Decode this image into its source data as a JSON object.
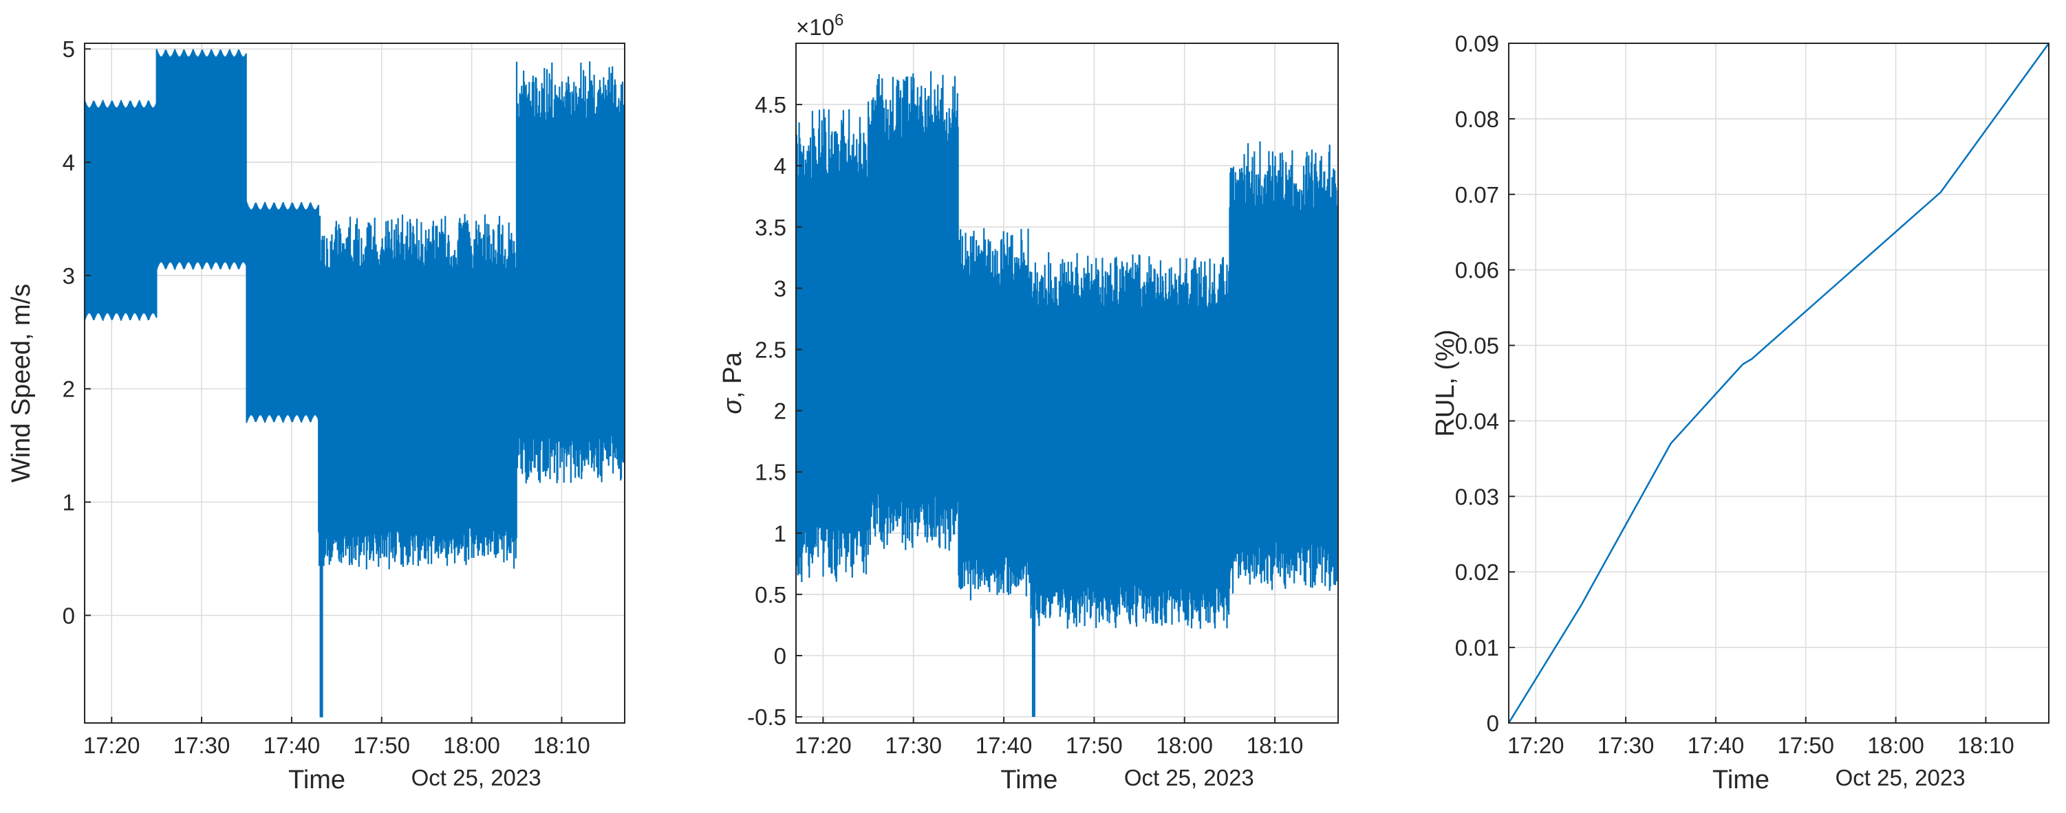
{
  "figure_colors": {
    "series": "#0072BD",
    "axes": "#262626",
    "grid": "#dcdcdc"
  },
  "chart_data": [
    {
      "type": "line",
      "id": "wind",
      "xlabel": "Time",
      "date_label": "Oct 25, 2023",
      "ylabel": "Wind Speed, m/s",
      "xlim": [
        "17:17",
        "18:17"
      ],
      "ylim": [
        -0.95,
        5.05
      ],
      "x_ticks": [
        "17:20",
        "17:30",
        "17:40",
        "17:50",
        "18:00",
        "18:10"
      ],
      "y_ticks": [
        "0",
        "1",
        "2",
        "3",
        "4",
        "5"
      ],
      "segments": [
        {
          "start": "17:17",
          "end": "17:25",
          "min": 2.6,
          "max": 4.55,
          "style": "periodic"
        },
        {
          "start": "17:25",
          "end": "17:35",
          "min": 3.05,
          "max": 5.0,
          "style": "periodic"
        },
        {
          "start": "17:35",
          "end": "17:43",
          "min": 1.7,
          "max": 3.65,
          "style": "periodic"
        },
        {
          "start": "17:43",
          "end": "18:05",
          "min": 0.4,
          "max": 3.55,
          "style": "noisy"
        },
        {
          "start": "18:05",
          "end": "18:17",
          "min": 1.15,
          "max": 4.9,
          "style": "noisy"
        }
      ],
      "spike": {
        "time": "17:43",
        "min": -0.9
      },
      "grid": true
    },
    {
      "type": "line",
      "id": "stress",
      "xlabel": "Time",
      "date_label": "Oct 25, 2023",
      "ylabel": "σ, Pa",
      "exponent_label": "×10",
      "exponent_value": "6",
      "xlim": [
        "17:17",
        "18:17"
      ],
      "ylim": [
        -0.55,
        5.0
      ],
      "x_ticks": [
        "17:20",
        "17:30",
        "17:40",
        "17:50",
        "18:00",
        "18:10"
      ],
      "y_ticks": [
        "-0.5",
        "0",
        "0.5",
        "1",
        "1.5",
        "2",
        "2.5",
        "3",
        "3.5",
        "4",
        "4.5"
      ],
      "segments": [
        {
          "start": "17:17",
          "end": "17:25",
          "min": 0.6,
          "max": 4.5,
          "style": "noisy"
        },
        {
          "start": "17:25",
          "end": "17:35",
          "min": 0.85,
          "max": 4.8,
          "style": "noisy"
        },
        {
          "start": "17:35",
          "end": "17:43",
          "min": 0.45,
          "max": 3.5,
          "style": "noisy"
        },
        {
          "start": "17:43",
          "end": "18:05",
          "min": 0.2,
          "max": 3.3,
          "style": "noisy"
        },
        {
          "start": "18:05",
          "end": "18:17",
          "min": 0.5,
          "max": 4.2,
          "style": "noisy"
        }
      ],
      "spike": {
        "time": "17:43",
        "min": -0.5
      },
      "grid": true
    },
    {
      "type": "line",
      "id": "rul",
      "xlabel": "Time",
      "date_label": "Oct 25, 2023",
      "ylabel": "RUL, (%)",
      "xlim": [
        "17:17",
        "18:17"
      ],
      "ylim": [
        0,
        0.09
      ],
      "x_ticks": [
        "17:20",
        "17:30",
        "17:40",
        "17:50",
        "18:00",
        "18:10"
      ],
      "y_ticks": [
        "0",
        "0.01",
        "0.02",
        "0.03",
        "0.04",
        "0.05",
        "0.06",
        "0.07",
        "0.08",
        "0.09"
      ],
      "points": [
        {
          "x": "17:17",
          "y": 0.0
        },
        {
          "x": "17:25",
          "y": 0.0155
        },
        {
          "x": "17:35",
          "y": 0.037
        },
        {
          "x": "17:43",
          "y": 0.0475
        },
        {
          "x": "17:44",
          "y": 0.0482
        },
        {
          "x": "18:05",
          "y": 0.0703
        },
        {
          "x": "18:17",
          "y": 0.09
        }
      ],
      "grid": true
    }
  ]
}
